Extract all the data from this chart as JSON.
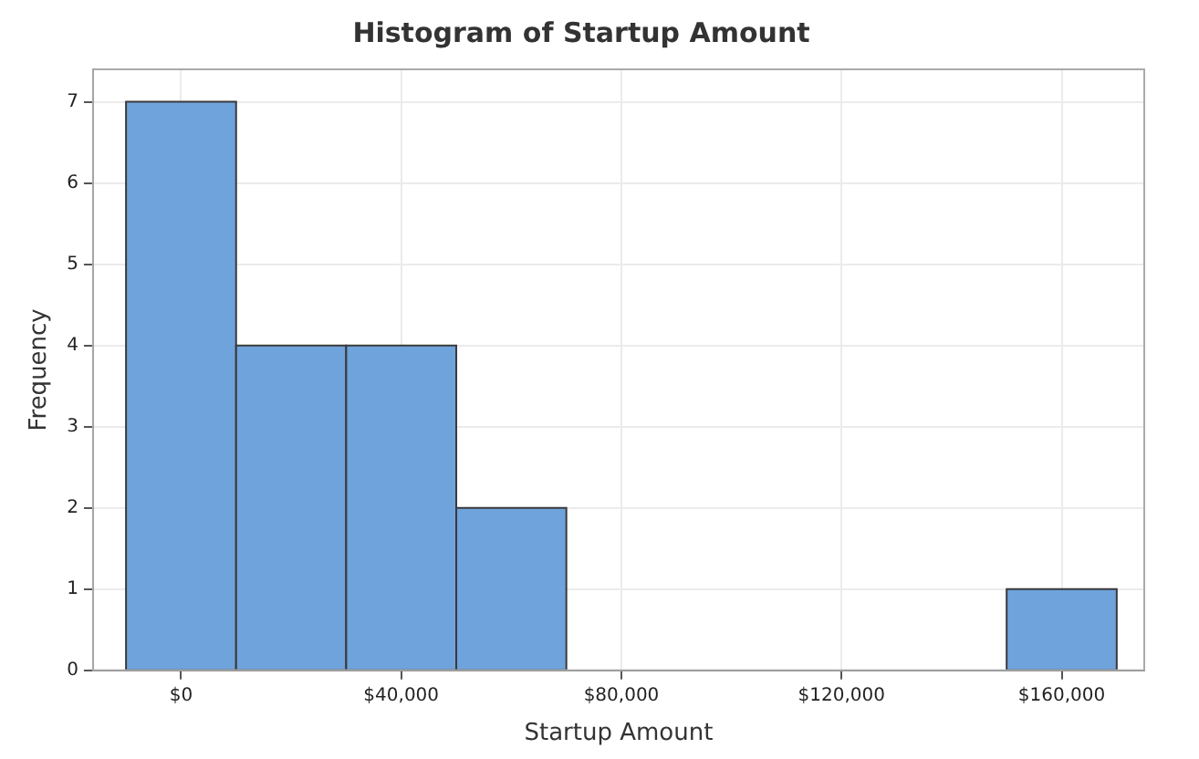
{
  "chart_data": {
    "type": "histogram",
    "title": "Histogram of Startup Amount",
    "xlabel": "Startup Amount",
    "ylabel": "Frequency",
    "bins": [
      -10000,
      10000,
      30000,
      50000,
      70000,
      90000,
      110000,
      130000,
      150000,
      170000
    ],
    "values": [
      7,
      4,
      4,
      2,
      0,
      0,
      0,
      0,
      1
    ],
    "color": "#6fa3dc",
    "xlim": [
      -16000,
      175000
    ],
    "xticks": [
      {
        "value": 0,
        "label": "$0"
      },
      {
        "value": 40000,
        "label": "$40,000"
      },
      {
        "value": 80000,
        "label": "$80,000"
      },
      {
        "value": 120000,
        "label": "$120,000"
      },
      {
        "value": 160000,
        "label": "$160,000"
      }
    ],
    "ylim": [
      0,
      7.4
    ],
    "yticks": [
      0,
      1,
      2,
      3,
      4,
      5,
      6,
      7
    ],
    "grid": true,
    "legend": false
  }
}
